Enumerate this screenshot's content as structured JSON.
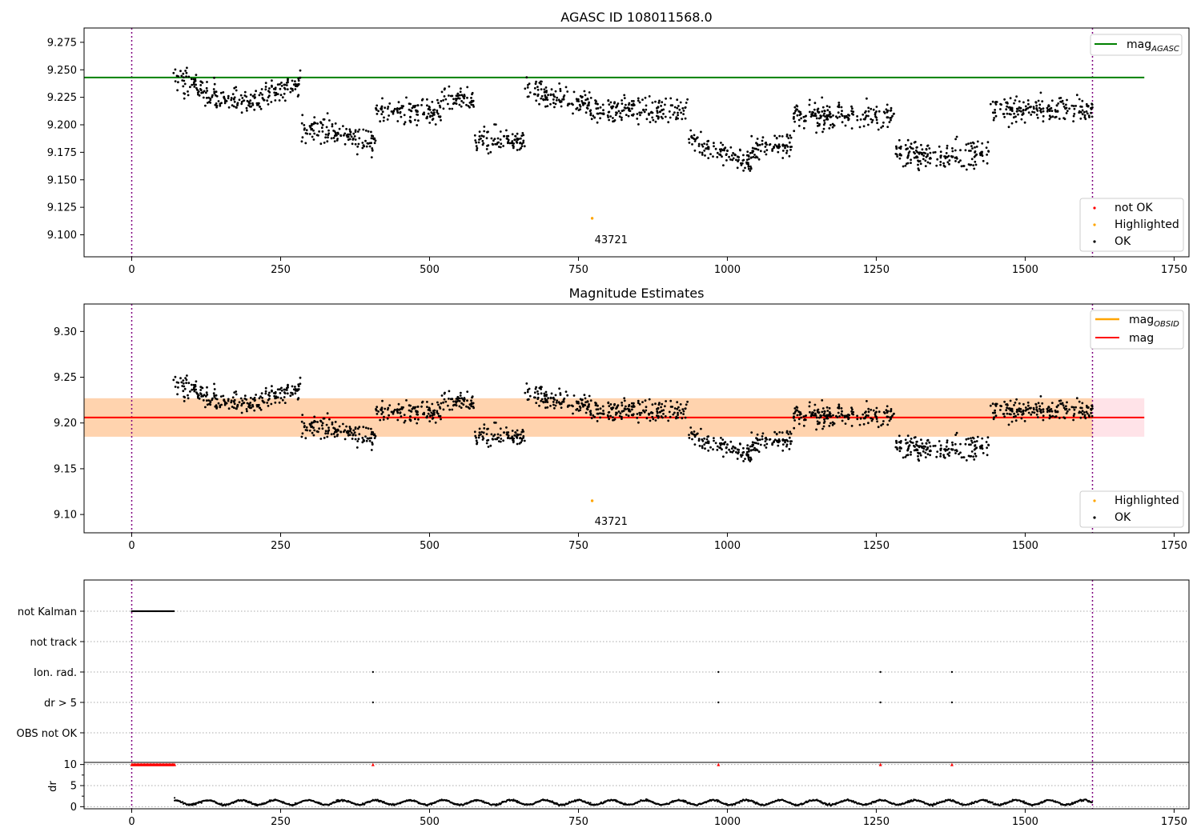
{
  "chart_data": [
    {
      "type": "scatter",
      "title": "AGASC ID 108011568.0",
      "xlim": [
        -80,
        1775
      ],
      "ylim": [
        9.08,
        9.288
      ],
      "xticks": [
        "0",
        "250",
        "500",
        "750",
        "1000",
        "1250",
        "1500",
        "1750"
      ],
      "yticks": [
        "9.100",
        "9.125",
        "9.150",
        "9.175",
        "9.200",
        "9.225",
        "9.250",
        "9.275"
      ],
      "vlines": [
        0,
        1613
      ],
      "hlines": [
        {
          "name": "mag_AGASC",
          "y": 9.243,
          "x_end": 1700,
          "color": "#008000"
        }
      ],
      "highlighted": [
        {
          "x": 773,
          "y": 9.115,
          "label": "43721"
        }
      ],
      "legend_lines": {
        "mag_agasc": {
          "base": "mag",
          "sub": "AGASC"
        }
      },
      "legend_points": [
        "not OK",
        "Highlighted",
        "OK"
      ],
      "series_ok_segments": [
        {
          "x0": 70,
          "x1": 140,
          "mean": 9.235,
          "amp": 0.012,
          "slope": -0.0002
        },
        {
          "x0": 140,
          "x1": 215,
          "mean": 9.222,
          "amp": 0.01,
          "slope": 0.0
        },
        {
          "x0": 215,
          "x1": 285,
          "mean": 9.232,
          "amp": 0.01,
          "slope": 0.0002
        },
        {
          "x0": 285,
          "x1": 410,
          "mean": 9.192,
          "amp": 0.012,
          "slope": -0.0001
        },
        {
          "x0": 410,
          "x1": 520,
          "mean": 9.212,
          "amp": 0.011,
          "slope": 0.0
        },
        {
          "x0": 520,
          "x1": 575,
          "mean": 9.222,
          "amp": 0.01,
          "slope": 0.0
        },
        {
          "x0": 575,
          "x1": 660,
          "mean": 9.186,
          "amp": 0.011,
          "slope": 0.0
        },
        {
          "x0": 660,
          "x1": 770,
          "mean": 9.225,
          "amp": 0.01,
          "slope": -0.0001
        },
        {
          "x0": 770,
          "x1": 935,
          "mean": 9.214,
          "amp": 0.011,
          "slope": 0.0
        },
        {
          "x0": 935,
          "x1": 1040,
          "mean": 9.176,
          "amp": 0.011,
          "slope": -0.0002
        },
        {
          "x0": 1040,
          "x1": 1110,
          "mean": 9.18,
          "amp": 0.011,
          "slope": 0.0001
        },
        {
          "x0": 1110,
          "x1": 1280,
          "mean": 9.208,
          "amp": 0.011,
          "slope": 0.0
        },
        {
          "x0": 1280,
          "x1": 1440,
          "mean": 9.174,
          "amp": 0.012,
          "slope": 0.0
        },
        {
          "x0": 1440,
          "x1": 1613,
          "mean": 9.213,
          "amp": 0.011,
          "slope": 0.0
        }
      ]
    },
    {
      "type": "scatter",
      "title": "Magnitude Estimates",
      "xlim": [
        -80,
        1775
      ],
      "ylim": [
        9.08,
        9.33
      ],
      "xticks": [
        "0",
        "250",
        "500",
        "750",
        "1000",
        "1250",
        "1500",
        "1750"
      ],
      "yticks": [
        "9.10",
        "9.15",
        "9.20",
        "9.25",
        "9.30"
      ],
      "vlines": [
        0,
        1613
      ],
      "hlines": [
        {
          "name": "mag_OBSID",
          "y": 9.206,
          "x_end": 1613,
          "color": "#ffa500"
        },
        {
          "name": "mag",
          "y": 9.206,
          "x_end": 1700,
          "color": "#ff0000"
        }
      ],
      "bands": [
        {
          "y0": 9.185,
          "y1": 9.227,
          "x_end": 1700,
          "color": "#ffc0cb"
        },
        {
          "y0": 9.185,
          "y1": 9.227,
          "x_end": 1613,
          "color": "#ffa500"
        }
      ],
      "highlighted": [
        {
          "x": 773,
          "y": 9.115,
          "label": "43721"
        }
      ],
      "legend_lines": {
        "mag_obsid": {
          "base": "mag",
          "sub": "OBSID"
        },
        "mag": "mag"
      },
      "legend_points": [
        "Highlighted",
        "OK"
      ]
    },
    {
      "type": "scatter",
      "xlim": [
        -80,
        1775
      ],
      "xticks": [
        "0",
        "250",
        "500",
        "750",
        "1000",
        "1250",
        "1500",
        "1750"
      ],
      "flag_rows": [
        "not Kalman",
        "not track",
        "Ion. rad.",
        "dr > 5",
        "OBS not OK"
      ],
      "flag_events": [
        {
          "row": "not Kalman",
          "x0": 0,
          "x1": 72
        },
        {
          "row": "Ion. rad.",
          "xs": [
            405,
            985,
            1257,
            1377
          ]
        },
        {
          "row": "dr > 5",
          "xs": [
            405,
            985,
            1257,
            1377
          ]
        }
      ],
      "dr_axis": {
        "ylabel": "dr",
        "yticks": [
          "0",
          "5",
          "10"
        ],
        "ylim": [
          -0.5,
          10.5
        ]
      },
      "dr_clipped": [
        {
          "x0": 0,
          "x1": 72,
          "y": 10
        },
        {
          "xs": [
            405,
            985,
            1257,
            1377
          ],
          "y": 10
        }
      ],
      "dr_range": {
        "x0": 72,
        "x1": 1613,
        "mean": 1.0,
        "amp": 0.6
      }
    }
  ]
}
